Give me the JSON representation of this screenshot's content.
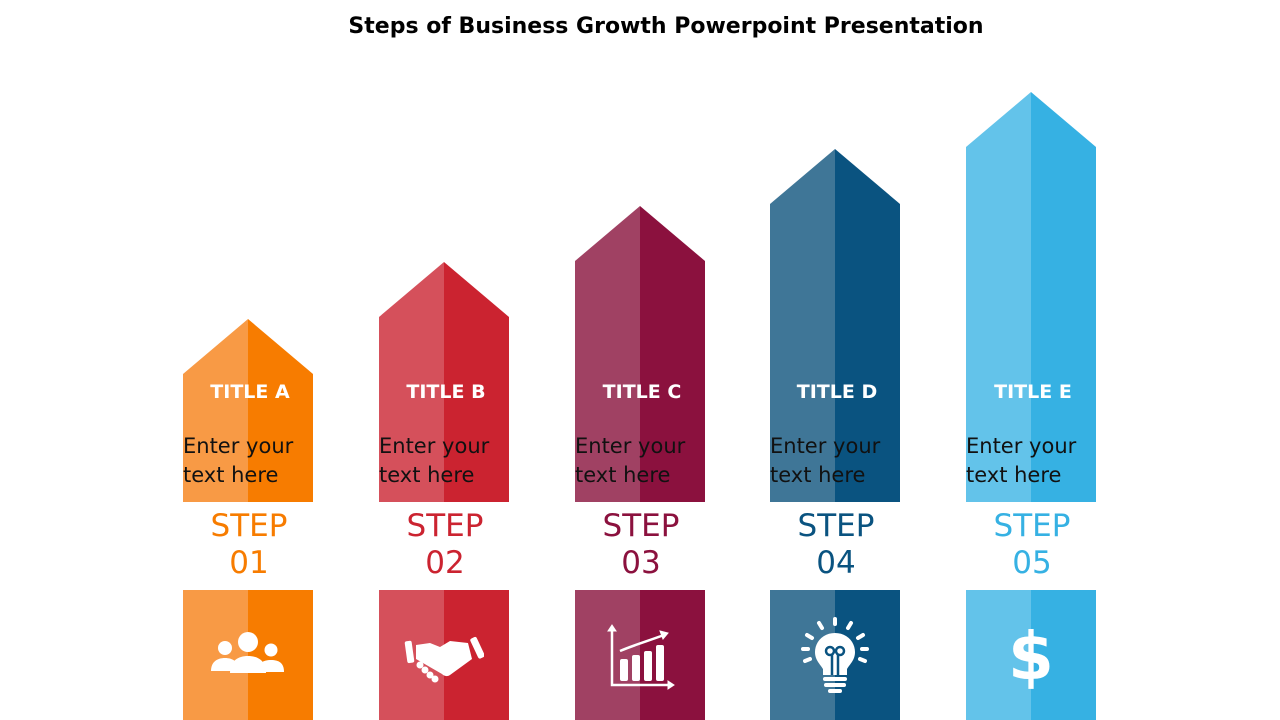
{
  "title": "Steps of Business Growth Powerpoint Presentation",
  "steps": [
    {
      "title": "TITLE A",
      "text": "Enter your text here",
      "step": "STEP",
      "num": "01",
      "icon": "people-icon",
      "light": "#F89A45",
      "dark": "#F77C00"
    },
    {
      "title": "TITLE B",
      "text": "Enter your text here",
      "step": "STEP",
      "num": "02",
      "icon": "handshake-icon",
      "light": "#D5505B",
      "dark": "#CB2330"
    },
    {
      "title": "TITLE C",
      "text": "Enter your text here",
      "step": "STEP",
      "num": "03",
      "icon": "growth-chart-icon",
      "light": "#A04163",
      "dark": "#8B113E"
    },
    {
      "title": "TITLE D",
      "text": "Enter your text here",
      "step": "STEP",
      "num": "04",
      "icon": "lightbulb-icon",
      "light": "#3F7697",
      "dark": "#0A5380"
    },
    {
      "title": "TITLE E",
      "text": "Enter your text here",
      "step": "STEP",
      "num": "05",
      "icon": "dollar-icon",
      "light": "#63C3EA",
      "dark": "#36B1E3"
    }
  ]
}
